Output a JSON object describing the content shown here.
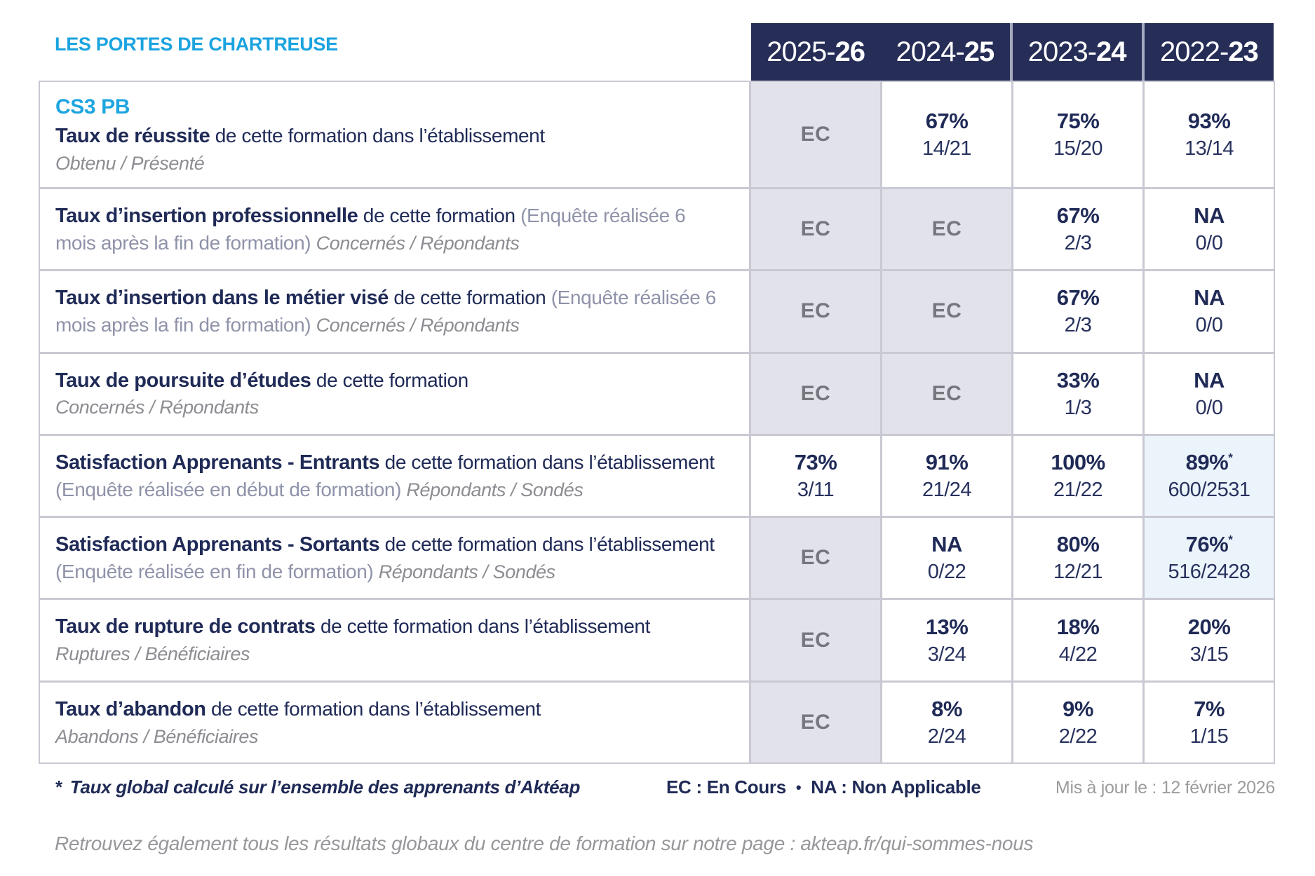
{
  "page": {
    "org_name": "LES PORTES DE CHARTREUSE"
  },
  "colors": {
    "accent_cyan": "#1EA5E0",
    "navy": "#1F2A56",
    "header_bg": "#262E58",
    "ec_cell_bg": "#E2E2EB",
    "highlight_cell_bg": "#ECF4FB",
    "grid_line": "#C9C9D3"
  },
  "table": {
    "year_columns": [
      {
        "prefix": "2025-",
        "suffix": "26",
        "separator_before": false
      },
      {
        "prefix": "2024-",
        "suffix": "25",
        "separator_before": false
      },
      {
        "prefix": "2023-",
        "suffix": "24",
        "separator_before": true
      },
      {
        "prefix": "2022-",
        "suffix": "23",
        "separator_before": true
      }
    ],
    "rows": [
      {
        "id": "taux-de-reussite",
        "course": "CS3 PB",
        "title": "Taux de réussite",
        "desc": "de cette formation dans l’établissement",
        "paren": "",
        "subtitle": "Obtenu / Présenté",
        "subtitle_newline": true,
        "values": [
          {
            "type": "ec",
            "label": "EC"
          },
          {
            "type": "value",
            "pct": "67%",
            "frac": "14/21"
          },
          {
            "type": "value",
            "pct": "75%",
            "frac": "15/20"
          },
          {
            "type": "value",
            "pct": "93%",
            "frac": "13/14"
          }
        ]
      },
      {
        "id": "taux-insertion-professionnelle",
        "course": "",
        "title": "Taux d’insertion professionnelle",
        "desc": "de cette formation",
        "paren": "(Enquête réalisée 6 mois après la fin de formation)",
        "subtitle": "Concernés / Répondants",
        "subtitle_newline": false,
        "values": [
          {
            "type": "ec",
            "label": "EC"
          },
          {
            "type": "ec",
            "label": "EC"
          },
          {
            "type": "value",
            "pct": "67%",
            "frac": "2/3"
          },
          {
            "type": "value",
            "pct": "NA",
            "frac": "0/0"
          }
        ]
      },
      {
        "id": "taux-insertion-metier-vise",
        "course": "",
        "title": "Taux d’insertion dans le métier visé",
        "desc": "de cette formation",
        "paren": "(Enquête réalisée 6 mois après la fin de formation)",
        "subtitle": "Concernés / Répondants",
        "subtitle_newline": false,
        "values": [
          {
            "type": "ec",
            "label": "EC"
          },
          {
            "type": "ec",
            "label": "EC"
          },
          {
            "type": "value",
            "pct": "67%",
            "frac": "2/3"
          },
          {
            "type": "value",
            "pct": "NA",
            "frac": "0/0"
          }
        ]
      },
      {
        "id": "taux-poursuite-etudes",
        "course": "",
        "title": "Taux de poursuite d’études",
        "desc": "de cette formation",
        "paren": "",
        "subtitle": "Concernés / Répondants",
        "subtitle_newline": true,
        "values": [
          {
            "type": "ec",
            "label": "EC"
          },
          {
            "type": "ec",
            "label": "EC"
          },
          {
            "type": "value",
            "pct": "33%",
            "frac": "1/3"
          },
          {
            "type": "value",
            "pct": "NA",
            "frac": "0/0"
          }
        ]
      },
      {
        "id": "satisfaction-apprenants-entrants",
        "course": "",
        "title": "Satisfaction Apprenants - Entrants",
        "desc": "de cette formation dans l’établissement",
        "paren": "(Enquête réalisée en début de formation)",
        "subtitle": "Répondants / Sondés",
        "subtitle_newline": false,
        "values": [
          {
            "type": "value",
            "pct": "73%",
            "frac": "3/11"
          },
          {
            "type": "value",
            "pct": "91%",
            "frac": "21/24"
          },
          {
            "type": "value",
            "pct": "100%",
            "frac": "21/22"
          },
          {
            "type": "value",
            "pct": "89%",
            "frac": "600/2531",
            "star": true,
            "highlight": true
          }
        ]
      },
      {
        "id": "satisfaction-apprenants-sortants",
        "course": "",
        "title": "Satisfaction Apprenants - Sortants",
        "desc": "de cette formation dans l’établissement",
        "paren": "(Enquête réalisée en fin de formation)",
        "subtitle": "Répondants / Sondés",
        "subtitle_newline": false,
        "values": [
          {
            "type": "ec",
            "label": "EC"
          },
          {
            "type": "value",
            "pct": "NA",
            "frac": "0/22"
          },
          {
            "type": "value",
            "pct": "80%",
            "frac": "12/21"
          },
          {
            "type": "value",
            "pct": "76%",
            "frac": "516/2428",
            "star": true,
            "highlight": true
          }
        ]
      },
      {
        "id": "taux-rupture-contrats",
        "course": "",
        "title": "Taux de rupture de contrats",
        "desc": "de cette formation dans l’établissement",
        "paren": "",
        "subtitle": "Ruptures / Bénéficiaires",
        "subtitle_newline": true,
        "values": [
          {
            "type": "ec",
            "label": "EC"
          },
          {
            "type": "value",
            "pct": "13%",
            "frac": "3/24"
          },
          {
            "type": "value",
            "pct": "18%",
            "frac": "4/22"
          },
          {
            "type": "value",
            "pct": "20%",
            "frac": "3/15"
          }
        ]
      },
      {
        "id": "taux-abandon",
        "course": "",
        "title": "Taux d’abandon",
        "desc": "de cette formation dans l’établissement",
        "paren": "",
        "subtitle": "Abandons / Bénéficiaires",
        "subtitle_newline": true,
        "values": [
          {
            "type": "ec",
            "label": "EC"
          },
          {
            "type": "value",
            "pct": "8%",
            "frac": "2/24"
          },
          {
            "type": "value",
            "pct": "9%",
            "frac": "2/22"
          },
          {
            "type": "value",
            "pct": "7%",
            "frac": "1/15"
          }
        ]
      }
    ]
  },
  "footer": {
    "asterisk": "*",
    "footnote": "Taux global calculé sur l’ensemble des apprenants d’Aktéap",
    "legend_ec": "EC : En Cours",
    "legend_sep": "•",
    "legend_na": "NA : Non Applicable",
    "updated": "Mis à jour le : 12 février 2026",
    "bottom_note": "Retrouvez également tous les résultats globaux du centre de formation sur notre page : akteap.fr/qui-sommes-nous"
  }
}
